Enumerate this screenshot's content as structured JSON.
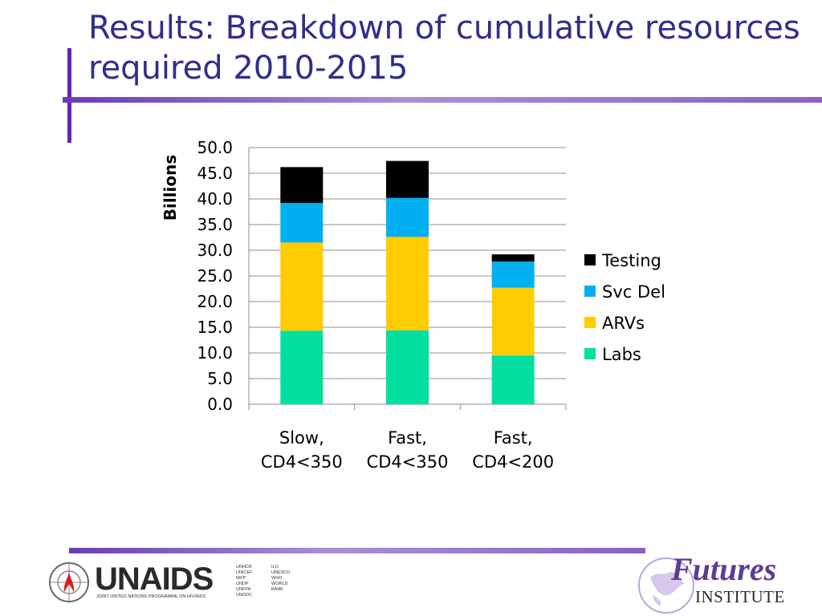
{
  "slide": {
    "title_line1": "Results: Breakdown of cumulative resources",
    "title_line2": "required 2010-2015",
    "colors": {
      "title": "#2e2e8a",
      "accent_bar": "#6a1fc8",
      "divider": "#9b7fd0"
    }
  },
  "chart_data": {
    "type": "bar",
    "stacked": true,
    "title": "",
    "xlabel": "",
    "ylabel": "Billions",
    "ylim": [
      0,
      50
    ],
    "yticks": [
      "0.0",
      "5.0",
      "10.0",
      "15.0",
      "20.0",
      "25.0",
      "30.0",
      "35.0",
      "40.0",
      "45.0",
      "50.0"
    ],
    "grid": true,
    "legend_position": "right",
    "categories": [
      [
        "Slow,",
        "CD4<350"
      ],
      [
        "Fast,",
        "CD4<350"
      ],
      [
        "Fast,",
        "CD4<200"
      ]
    ],
    "series": [
      {
        "name": "Labs",
        "color": "#00dfa0",
        "values": [
          14.3,
          14.4,
          9.5
        ]
      },
      {
        "name": "ARVs",
        "color": "#ffcc00",
        "values": [
          17.2,
          18.2,
          13.2
        ]
      },
      {
        "name": "Svc Del",
        "color": "#00b0f0",
        "values": [
          7.7,
          7.6,
          5.1
        ]
      },
      {
        "name": "Testing",
        "color": "#000000",
        "values": [
          7.0,
          7.2,
          1.4
        ]
      }
    ]
  },
  "footer": {
    "unaids_word": "UNAIDS",
    "unaids_sub": "JOINT UNITED NATIONS PROGRAMME ON HIV/AIDS",
    "unaids_agencies": [
      "UNHCR",
      "UNICEF",
      "WFP",
      "UNDP",
      "UNFPA",
      "UNODC",
      "ILO",
      "UNESCO",
      "WHO",
      "WORLD BANK"
    ],
    "futures_word": "Futures",
    "futures_sub": "INSTITUTE"
  }
}
